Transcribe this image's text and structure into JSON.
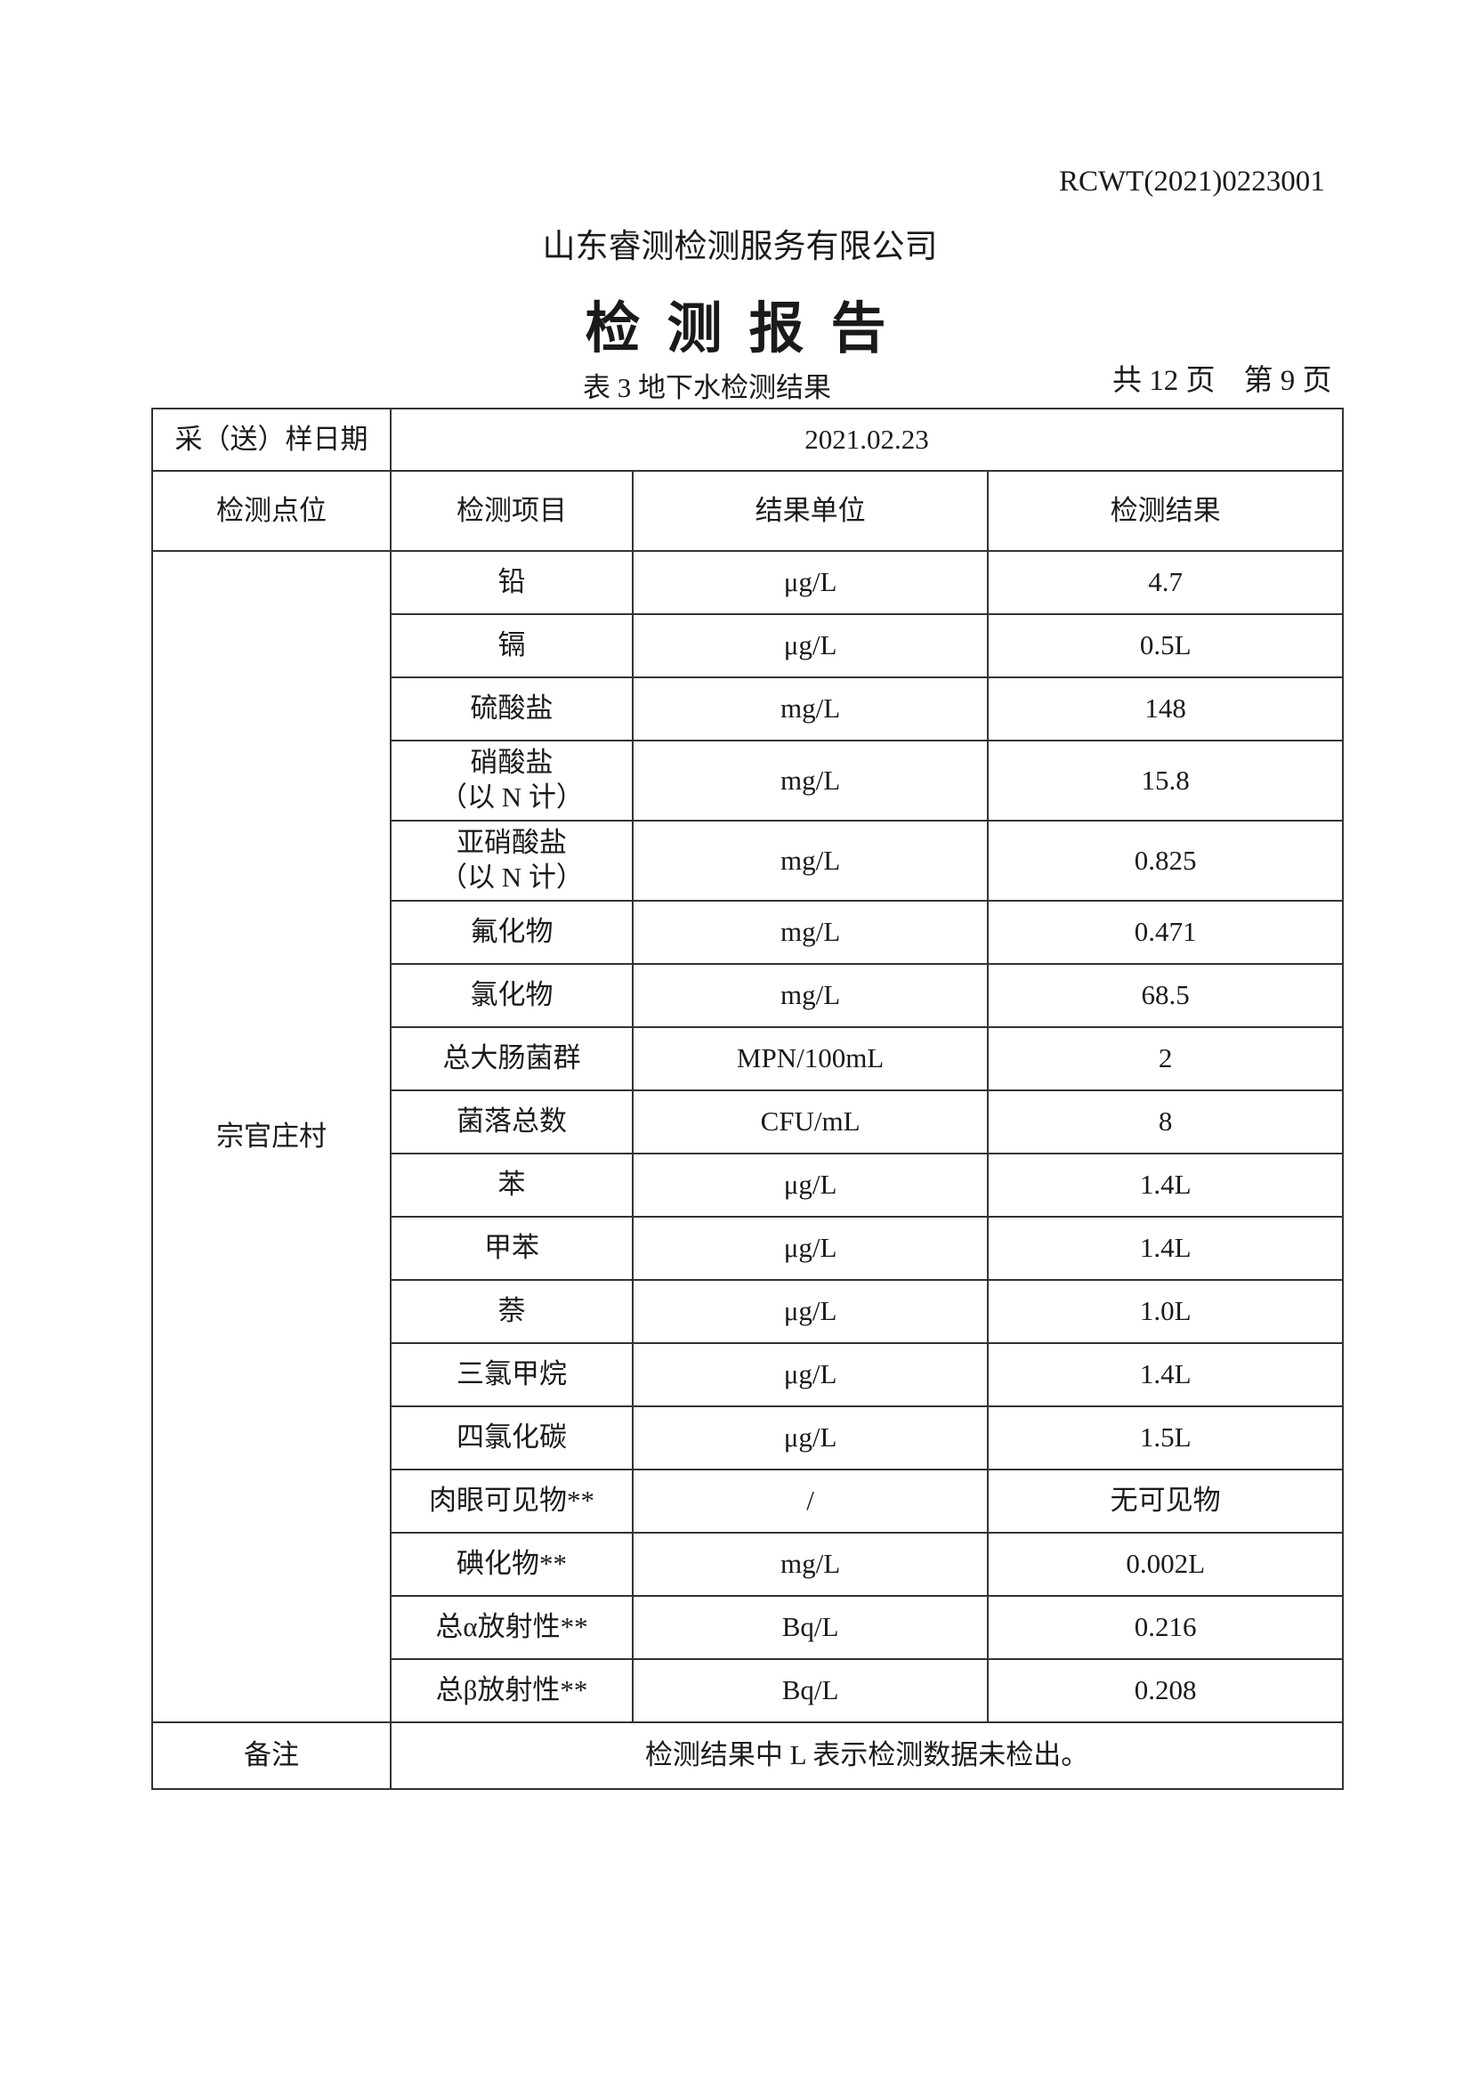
{
  "header": {
    "report_no": "RCWT(2021)0223001",
    "company": "山东睿测检测服务有限公司",
    "title": "检测报告",
    "table_caption": "表 3  地下水检测结果",
    "total_pages": "共 12 页",
    "current_page": "第 9 页"
  },
  "table": {
    "date_label": "采（送）样日期",
    "date_value": "2021.02.23",
    "columns": [
      "检测点位",
      "检测项目",
      "结果单位",
      "检测结果"
    ],
    "site": "宗官庄村",
    "rows": [
      {
        "item": "铅",
        "item2": "",
        "unit": "μg/L",
        "result": "4.7"
      },
      {
        "item": "镉",
        "item2": "",
        "unit": "μg/L",
        "result": "0.5L"
      },
      {
        "item": "硫酸盐",
        "item2": "",
        "unit": "mg/L",
        "result": "148"
      },
      {
        "item": "硝酸盐",
        "item2": "（以 N 计）",
        "unit": "mg/L",
        "result": "15.8"
      },
      {
        "item": "亚硝酸盐",
        "item2": "（以 N 计）",
        "unit": "mg/L",
        "result": "0.825"
      },
      {
        "item": "氟化物",
        "item2": "",
        "unit": "mg/L",
        "result": "0.471"
      },
      {
        "item": "氯化物",
        "item2": "",
        "unit": "mg/L",
        "result": "68.5"
      },
      {
        "item": "总大肠菌群",
        "item2": "",
        "unit": "MPN/100mL",
        "result": "2"
      },
      {
        "item": "菌落总数",
        "item2": "",
        "unit": "CFU/mL",
        "result": "8"
      },
      {
        "item": "苯",
        "item2": "",
        "unit": "μg/L",
        "result": "1.4L"
      },
      {
        "item": "甲苯",
        "item2": "",
        "unit": "μg/L",
        "result": "1.4L"
      },
      {
        "item": "萘",
        "item2": "",
        "unit": "μg/L",
        "result": "1.0L"
      },
      {
        "item": "三氯甲烷",
        "item2": "",
        "unit": "μg/L",
        "result": "1.4L"
      },
      {
        "item": "四氯化碳",
        "item2": "",
        "unit": "μg/L",
        "result": "1.5L"
      },
      {
        "item": "肉眼可见物**",
        "item2": "",
        "unit": "/",
        "result": "无可见物"
      },
      {
        "item": "碘化物**",
        "item2": "",
        "unit": "mg/L",
        "result": "0.002L"
      },
      {
        "item": "总α放射性**",
        "item2": "",
        "unit": "Bq/L",
        "result": "0.216"
      },
      {
        "item": "总β放射性**",
        "item2": "",
        "unit": "Bq/L",
        "result": "0.208"
      }
    ],
    "remark_label": "备注",
    "remark": "检测结果中 L 表示检测数据未检出。"
  }
}
